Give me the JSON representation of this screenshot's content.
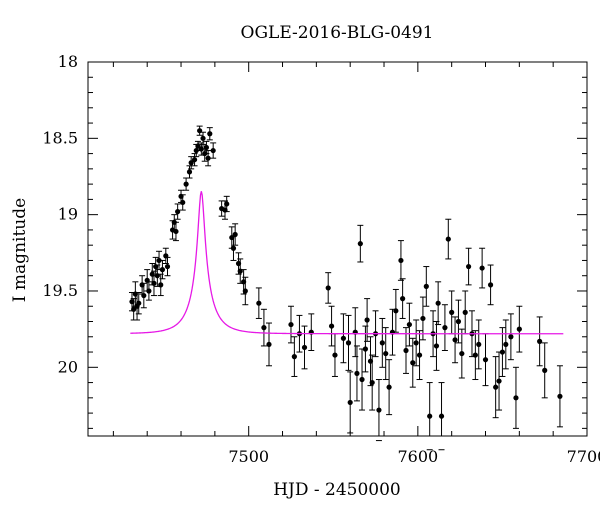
{
  "chart_data": {
    "type": "scatter",
    "title": "OGLE-2016-BLG-0491",
    "xlabel": "HJD - 2450000",
    "ylabel": "I magnitude",
    "xlim": [
      7405,
      7700
    ],
    "ylim": [
      20.45,
      18.0
    ],
    "y_axis_inverted": true,
    "grid": false,
    "x_ticks": [
      7500,
      7600,
      7700
    ],
    "y_ticks": [
      18,
      18.5,
      19,
      19.5,
      20
    ],
    "x_tick_labels": [
      "7500",
      "7600",
      "7700"
    ],
    "y_tick_labels": [
      "18",
      "18.5",
      "19",
      "19.5",
      "20"
    ],
    "colors": {
      "data": "#000000",
      "model": "#e619e6"
    },
    "series": [
      {
        "kind": "points-with-errorbars",
        "points": [
          {
            "x": 7431,
            "y": 19.57,
            "err": 0.06
          },
          {
            "x": 7432,
            "y": 19.62,
            "err": 0.07
          },
          {
            "x": 7433,
            "y": 19.52,
            "err": 0.08
          },
          {
            "x": 7434,
            "y": 19.6,
            "err": 0.09
          },
          {
            "x": 7435,
            "y": 19.58,
            "err": 0.07
          },
          {
            "x": 7437,
            "y": 19.46,
            "err": 0.06
          },
          {
            "x": 7438,
            "y": 19.53,
            "err": 0.08
          },
          {
            "x": 7440,
            "y": 19.43,
            "err": 0.07
          },
          {
            "x": 7441,
            "y": 19.5,
            "err": 0.06
          },
          {
            "x": 7443,
            "y": 19.39,
            "err": 0.07
          },
          {
            "x": 7444,
            "y": 19.45,
            "err": 0.08
          },
          {
            "x": 7445,
            "y": 19.34,
            "err": 0.06
          },
          {
            "x": 7446,
            "y": 19.4,
            "err": 0.07
          },
          {
            "x": 7447,
            "y": 19.3,
            "err": 0.06
          },
          {
            "x": 7448,
            "y": 19.46,
            "err": 0.07
          },
          {
            "x": 7449,
            "y": 19.36,
            "err": 0.06
          },
          {
            "x": 7451,
            "y": 19.27,
            "err": 0.05
          },
          {
            "x": 7452,
            "y": 19.34,
            "err": 0.06
          },
          {
            "x": 7455,
            "y": 19.1,
            "err": 0.06
          },
          {
            "x": 7456,
            "y": 19.05,
            "err": 0.05
          },
          {
            "x": 7457,
            "y": 19.11,
            "err": 0.06
          },
          {
            "x": 7458,
            "y": 18.98,
            "err": 0.05
          },
          {
            "x": 7460,
            "y": 18.88,
            "err": 0.04
          },
          {
            "x": 7461,
            "y": 18.92,
            "err": 0.05
          },
          {
            "x": 7463,
            "y": 18.8,
            "err": 0.04
          },
          {
            "x": 7465,
            "y": 18.72,
            "err": 0.04
          },
          {
            "x": 7466,
            "y": 18.66,
            "err": 0.04
          },
          {
            "x": 7468,
            "y": 18.64,
            "err": 0.04
          },
          {
            "x": 7469,
            "y": 18.58,
            "err": 0.04
          },
          {
            "x": 7470,
            "y": 18.55,
            "err": 0.03
          },
          {
            "x": 7471,
            "y": 18.45,
            "err": 0.03
          },
          {
            "x": 7472,
            "y": 18.57,
            "err": 0.04
          },
          {
            "x": 7473,
            "y": 18.5,
            "err": 0.04
          },
          {
            "x": 7474,
            "y": 18.6,
            "err": 0.05
          },
          {
            "x": 7475,
            "y": 18.56,
            "err": 0.04
          },
          {
            "x": 7476,
            "y": 18.63,
            "err": 0.05
          },
          {
            "x": 7477,
            "y": 18.47,
            "err": 0.04
          },
          {
            "x": 7479,
            "y": 18.58,
            "err": 0.05
          },
          {
            "x": 7484,
            "y": 18.96,
            "err": 0.05
          },
          {
            "x": 7486,
            "y": 18.97,
            "err": 0.06
          },
          {
            "x": 7487,
            "y": 18.93,
            "err": 0.05
          },
          {
            "x": 7490,
            "y": 19.15,
            "err": 0.07
          },
          {
            "x": 7491,
            "y": 19.22,
            "err": 0.08
          },
          {
            "x": 7492,
            "y": 19.13,
            "err": 0.07
          },
          {
            "x": 7494,
            "y": 19.32,
            "err": 0.07
          },
          {
            "x": 7495,
            "y": 19.37,
            "err": 0.08
          },
          {
            "x": 7497,
            "y": 19.44,
            "err": 0.08
          },
          {
            "x": 7498,
            "y": 19.5,
            "err": 0.09
          },
          {
            "x": 7506,
            "y": 19.58,
            "err": 0.1
          },
          {
            "x": 7509,
            "y": 19.74,
            "err": 0.12
          },
          {
            "x": 7512,
            "y": 19.85,
            "err": 0.14
          },
          {
            "x": 7525,
            "y": 19.72,
            "err": 0.12
          },
          {
            "x": 7527,
            "y": 19.93,
            "err": 0.13
          },
          {
            "x": 7530,
            "y": 19.78,
            "err": 0.12
          },
          {
            "x": 7533,
            "y": 19.87,
            "err": 0.14
          },
          {
            "x": 7537,
            "y": 19.77,
            "err": 0.12
          },
          {
            "x": 7547,
            "y": 19.48,
            "err": 0.1
          },
          {
            "x": 7549,
            "y": 19.73,
            "err": 0.13
          },
          {
            "x": 7551,
            "y": 19.92,
            "err": 0.14
          },
          {
            "x": 7556,
            "y": 19.81,
            "err": 0.16
          },
          {
            "x": 7559,
            "y": 19.84,
            "err": 0.18
          },
          {
            "x": 7560,
            "y": 20.23,
            "err": 0.2
          },
          {
            "x": 7563,
            "y": 19.77,
            "err": 0.16
          },
          {
            "x": 7564,
            "y": 20.04,
            "err": 0.18
          },
          {
            "x": 7566,
            "y": 19.19,
            "err": 0.12
          },
          {
            "x": 7567,
            "y": 20.08,
            "err": 0.2
          },
          {
            "x": 7569,
            "y": 19.88,
            "err": 0.15
          },
          {
            "x": 7570,
            "y": 19.69,
            "err": 0.14
          },
          {
            "x": 7572,
            "y": 19.96,
            "err": 0.16
          },
          {
            "x": 7573,
            "y": 20.1,
            "err": 0.18
          },
          {
            "x": 7575,
            "y": 19.78,
            "err": 0.15
          },
          {
            "x": 7577,
            "y": 20.28,
            "err": 0.2
          },
          {
            "x": 7579,
            "y": 19.84,
            "err": 0.16
          },
          {
            "x": 7581,
            "y": 19.91,
            "err": 0.17
          },
          {
            "x": 7583,
            "y": 20.13,
            "err": 0.18
          },
          {
            "x": 7585,
            "y": 19.77,
            "err": 0.15
          },
          {
            "x": 7587,
            "y": 19.63,
            "err": 0.14
          },
          {
            "x": 7590,
            "y": 19.3,
            "err": 0.13
          },
          {
            "x": 7591,
            "y": 19.55,
            "err": 0.13
          },
          {
            "x": 7593,
            "y": 19.89,
            "err": 0.15
          },
          {
            "x": 7595,
            "y": 19.72,
            "err": 0.14
          },
          {
            "x": 7597,
            "y": 19.97,
            "err": 0.16
          },
          {
            "x": 7599,
            "y": 19.84,
            "err": 0.15
          },
          {
            "x": 7601,
            "y": 19.92,
            "err": 0.16
          },
          {
            "x": 7603,
            "y": 19.68,
            "err": 0.14
          },
          {
            "x": 7605,
            "y": 19.47,
            "err": 0.13
          },
          {
            "x": 7607,
            "y": 20.32,
            "err": 0.22
          },
          {
            "x": 7609,
            "y": 19.78,
            "err": 0.15
          },
          {
            "x": 7611,
            "y": 19.86,
            "err": 0.16
          },
          {
            "x": 7612,
            "y": 19.58,
            "err": 0.14
          },
          {
            "x": 7614,
            "y": 20.32,
            "err": 0.22
          },
          {
            "x": 7616,
            "y": 19.74,
            "err": 0.15
          },
          {
            "x": 7618,
            "y": 19.16,
            "err": 0.13
          },
          {
            "x": 7620,
            "y": 19.64,
            "err": 0.14
          },
          {
            "x": 7622,
            "y": 19.82,
            "err": 0.15
          },
          {
            "x": 7624,
            "y": 19.7,
            "err": 0.14
          },
          {
            "x": 7626,
            "y": 19.91,
            "err": 0.16
          },
          {
            "x": 7628,
            "y": 19.64,
            "err": 0.14
          },
          {
            "x": 7630,
            "y": 19.34,
            "err": 0.12
          },
          {
            "x": 7632,
            "y": 19.78,
            "err": 0.15
          },
          {
            "x": 7634,
            "y": 19.92,
            "err": 0.16
          },
          {
            "x": 7636,
            "y": 19.85,
            "err": 0.16
          },
          {
            "x": 7638,
            "y": 19.35,
            "err": 0.13
          },
          {
            "x": 7640,
            "y": 19.95,
            "err": 0.17
          },
          {
            "x": 7643,
            "y": 19.46,
            "err": 0.13
          },
          {
            "x": 7646,
            "y": 20.13,
            "err": 0.2
          },
          {
            "x": 7648,
            "y": 20.09,
            "err": 0.19
          },
          {
            "x": 7650,
            "y": 19.9,
            "err": 0.16
          },
          {
            "x": 7652,
            "y": 19.85,
            "err": 0.16
          },
          {
            "x": 7655,
            "y": 19.8,
            "err": 0.15
          },
          {
            "x": 7658,
            "y": 20.2,
            "err": 0.2
          },
          {
            "x": 7660,
            "y": 19.75,
            "err": 0.15
          },
          {
            "x": 7672,
            "y": 19.83,
            "err": 0.16
          },
          {
            "x": 7675,
            "y": 20.02,
            "err": 0.18
          },
          {
            "x": 7684,
            "y": 20.19,
            "err": 0.2
          }
        ]
      },
      {
        "kind": "model-curve",
        "model": {
          "t0": 7472,
          "tE": 13,
          "u0": 0.14,
          "baseline": 19.78,
          "fs": 0.22
        },
        "x_range": [
          7430,
          7686
        ]
      }
    ]
  }
}
